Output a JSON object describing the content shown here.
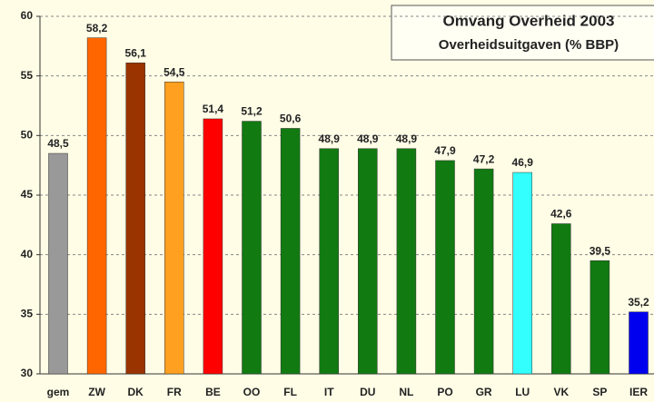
{
  "chart_data": {
    "type": "bar",
    "title": "Omvang Overheid 2003",
    "subtitle": "Overheidsuitgaven (% BBP)",
    "categories": [
      "gem",
      "ZW",
      "DK",
      "FR",
      "BE",
      "OO",
      "FL",
      "IT",
      "DU",
      "NL",
      "PO",
      "GR",
      "LU",
      "VK",
      "SP",
      "IER"
    ],
    "values": [
      48.5,
      58.2,
      56.1,
      54.5,
      51.4,
      51.2,
      50.6,
      48.9,
      48.9,
      48.9,
      47.9,
      47.2,
      46.9,
      42.6,
      39.5,
      35.2
    ],
    "value_labels": [
      "48,5",
      "58,2",
      "56,1",
      "54,5",
      "51,4",
      "51,2",
      "50,6",
      "48,9",
      "48,9",
      "48,9",
      "47,9",
      "47,2",
      "46,9",
      "42,6",
      "39,5",
      "35,2"
    ],
    "colors": [
      "#999999",
      "#ff6600",
      "#993300",
      "#ffa020",
      "#ff0000",
      "#117a11",
      "#117a11",
      "#117a11",
      "#117a11",
      "#117a11",
      "#117a11",
      "#117a11",
      "#33ffff",
      "#117a11",
      "#117a11",
      "#0000ee"
    ],
    "ylim": [
      30,
      60
    ],
    "yticks": [
      30,
      35,
      40,
      45,
      50,
      55,
      60
    ],
    "grid": true
  }
}
